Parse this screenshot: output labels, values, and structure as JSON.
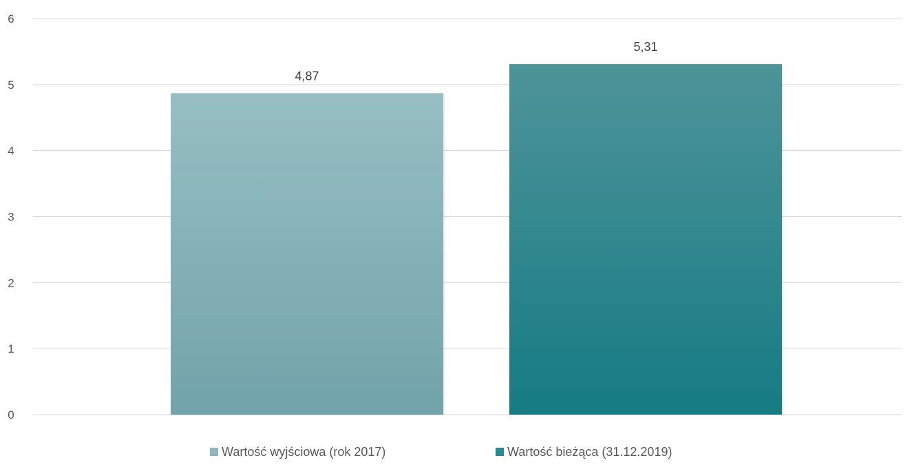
{
  "chart_data": {
    "type": "bar",
    "categories": [
      ""
    ],
    "series": [
      {
        "name": "Wartość wyjściowa (rok 2017)",
        "values": [
          4.87
        ],
        "label": "4,87",
        "color_top": "#97bfc3",
        "color_bottom": "#72a3aa"
      },
      {
        "name": "Wartość bieżąca (31.12.2019)",
        "values": [
          5.31
        ],
        "label": "5,31",
        "color_top": "#4e9499",
        "color_bottom": "#167b84"
      }
    ],
    "ylim": [
      0,
      6
    ],
    "yticks": [
      "0",
      "1",
      "2",
      "3",
      "4",
      "5",
      "6"
    ],
    "title": "",
    "xlabel": "",
    "ylabel": "",
    "grid": true,
    "legend": "bottom"
  },
  "legend_swatch_colors": [
    "#8fb7bc",
    "#2a8a91"
  ]
}
